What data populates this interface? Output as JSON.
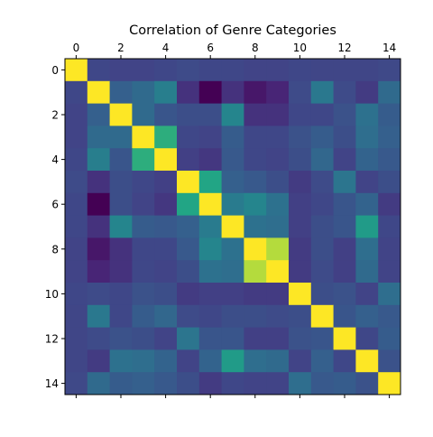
{
  "chart_data": {
    "type": "heatmap",
    "title": "Correlation of Genre Categories",
    "xlabel": "",
    "ylabel": "",
    "colormap": "viridis",
    "value_range": [
      -0.2,
      1.0
    ],
    "x_ticks": [
      0,
      2,
      4,
      6,
      8,
      10,
      12,
      14
    ],
    "y_ticks": [
      0,
      2,
      4,
      6,
      8,
      10,
      12,
      14
    ],
    "x_tick_position": "top and bottom (labels on top)",
    "grid": false,
    "legend": "none",
    "size": 15,
    "matrix": [
      [
        1.0,
        0.12,
        0.1,
        0.1,
        0.12,
        0.14,
        0.12,
        0.12,
        0.1,
        0.1,
        0.12,
        0.11,
        0.11,
        0.11,
        0.13
      ],
      [
        0.12,
        1.0,
        0.26,
        0.32,
        0.44,
        0.02,
        -0.2,
        0.02,
        -0.1,
        -0.04,
        0.14,
        0.4,
        0.14,
        0.06,
        0.32
      ],
      [
        0.1,
        0.26,
        1.0,
        0.32,
        0.2,
        0.16,
        0.16,
        0.48,
        0.02,
        0.02,
        0.12,
        0.12,
        0.18,
        0.36,
        0.24
      ],
      [
        0.1,
        0.32,
        0.32,
        1.0,
        0.72,
        0.12,
        0.1,
        0.24,
        0.12,
        0.12,
        0.18,
        0.24,
        0.16,
        0.34,
        0.26
      ],
      [
        0.12,
        0.44,
        0.2,
        0.72,
        1.0,
        0.08,
        0.04,
        0.22,
        0.12,
        0.1,
        0.16,
        0.3,
        0.1,
        0.28,
        0.22
      ],
      [
        0.14,
        0.02,
        0.16,
        0.12,
        0.08,
        1.0,
        0.68,
        0.26,
        0.22,
        0.16,
        0.06,
        0.14,
        0.38,
        0.1,
        0.16
      ],
      [
        0.12,
        -0.2,
        0.16,
        0.1,
        0.04,
        0.68,
        1.0,
        0.42,
        0.48,
        0.36,
        0.08,
        0.12,
        0.2,
        0.28,
        0.06
      ],
      [
        0.12,
        0.02,
        0.48,
        0.24,
        0.22,
        0.26,
        0.42,
        1.0,
        0.36,
        0.34,
        0.08,
        0.16,
        0.2,
        0.62,
        0.12
      ],
      [
        0.1,
        -0.1,
        0.02,
        0.12,
        0.12,
        0.22,
        0.48,
        0.36,
        1.0,
        0.92,
        0.06,
        0.16,
        0.08,
        0.34,
        0.1
      ],
      [
        0.1,
        -0.04,
        0.02,
        0.12,
        0.1,
        0.16,
        0.36,
        0.34,
        0.92,
        1.0,
        0.06,
        0.14,
        0.08,
        0.32,
        0.1
      ],
      [
        0.12,
        0.14,
        0.12,
        0.18,
        0.16,
        0.06,
        0.08,
        0.08,
        0.06,
        0.06,
        1.0,
        0.16,
        0.18,
        0.1,
        0.34
      ],
      [
        0.11,
        0.4,
        0.12,
        0.24,
        0.3,
        0.14,
        0.12,
        0.16,
        0.16,
        0.14,
        0.16,
        1.0,
        0.2,
        0.26,
        0.22
      ],
      [
        0.11,
        0.14,
        0.18,
        0.16,
        0.1,
        0.38,
        0.2,
        0.2,
        0.08,
        0.08,
        0.18,
        0.2,
        1.0,
        0.12,
        0.24
      ],
      [
        0.11,
        0.06,
        0.36,
        0.34,
        0.28,
        0.1,
        0.28,
        0.62,
        0.34,
        0.32,
        0.1,
        0.26,
        0.12,
        1.0,
        0.18
      ],
      [
        0.13,
        0.32,
        0.24,
        0.26,
        0.22,
        0.16,
        0.06,
        0.12,
        0.1,
        0.1,
        0.34,
        0.22,
        0.24,
        0.18,
        1.0
      ]
    ]
  }
}
